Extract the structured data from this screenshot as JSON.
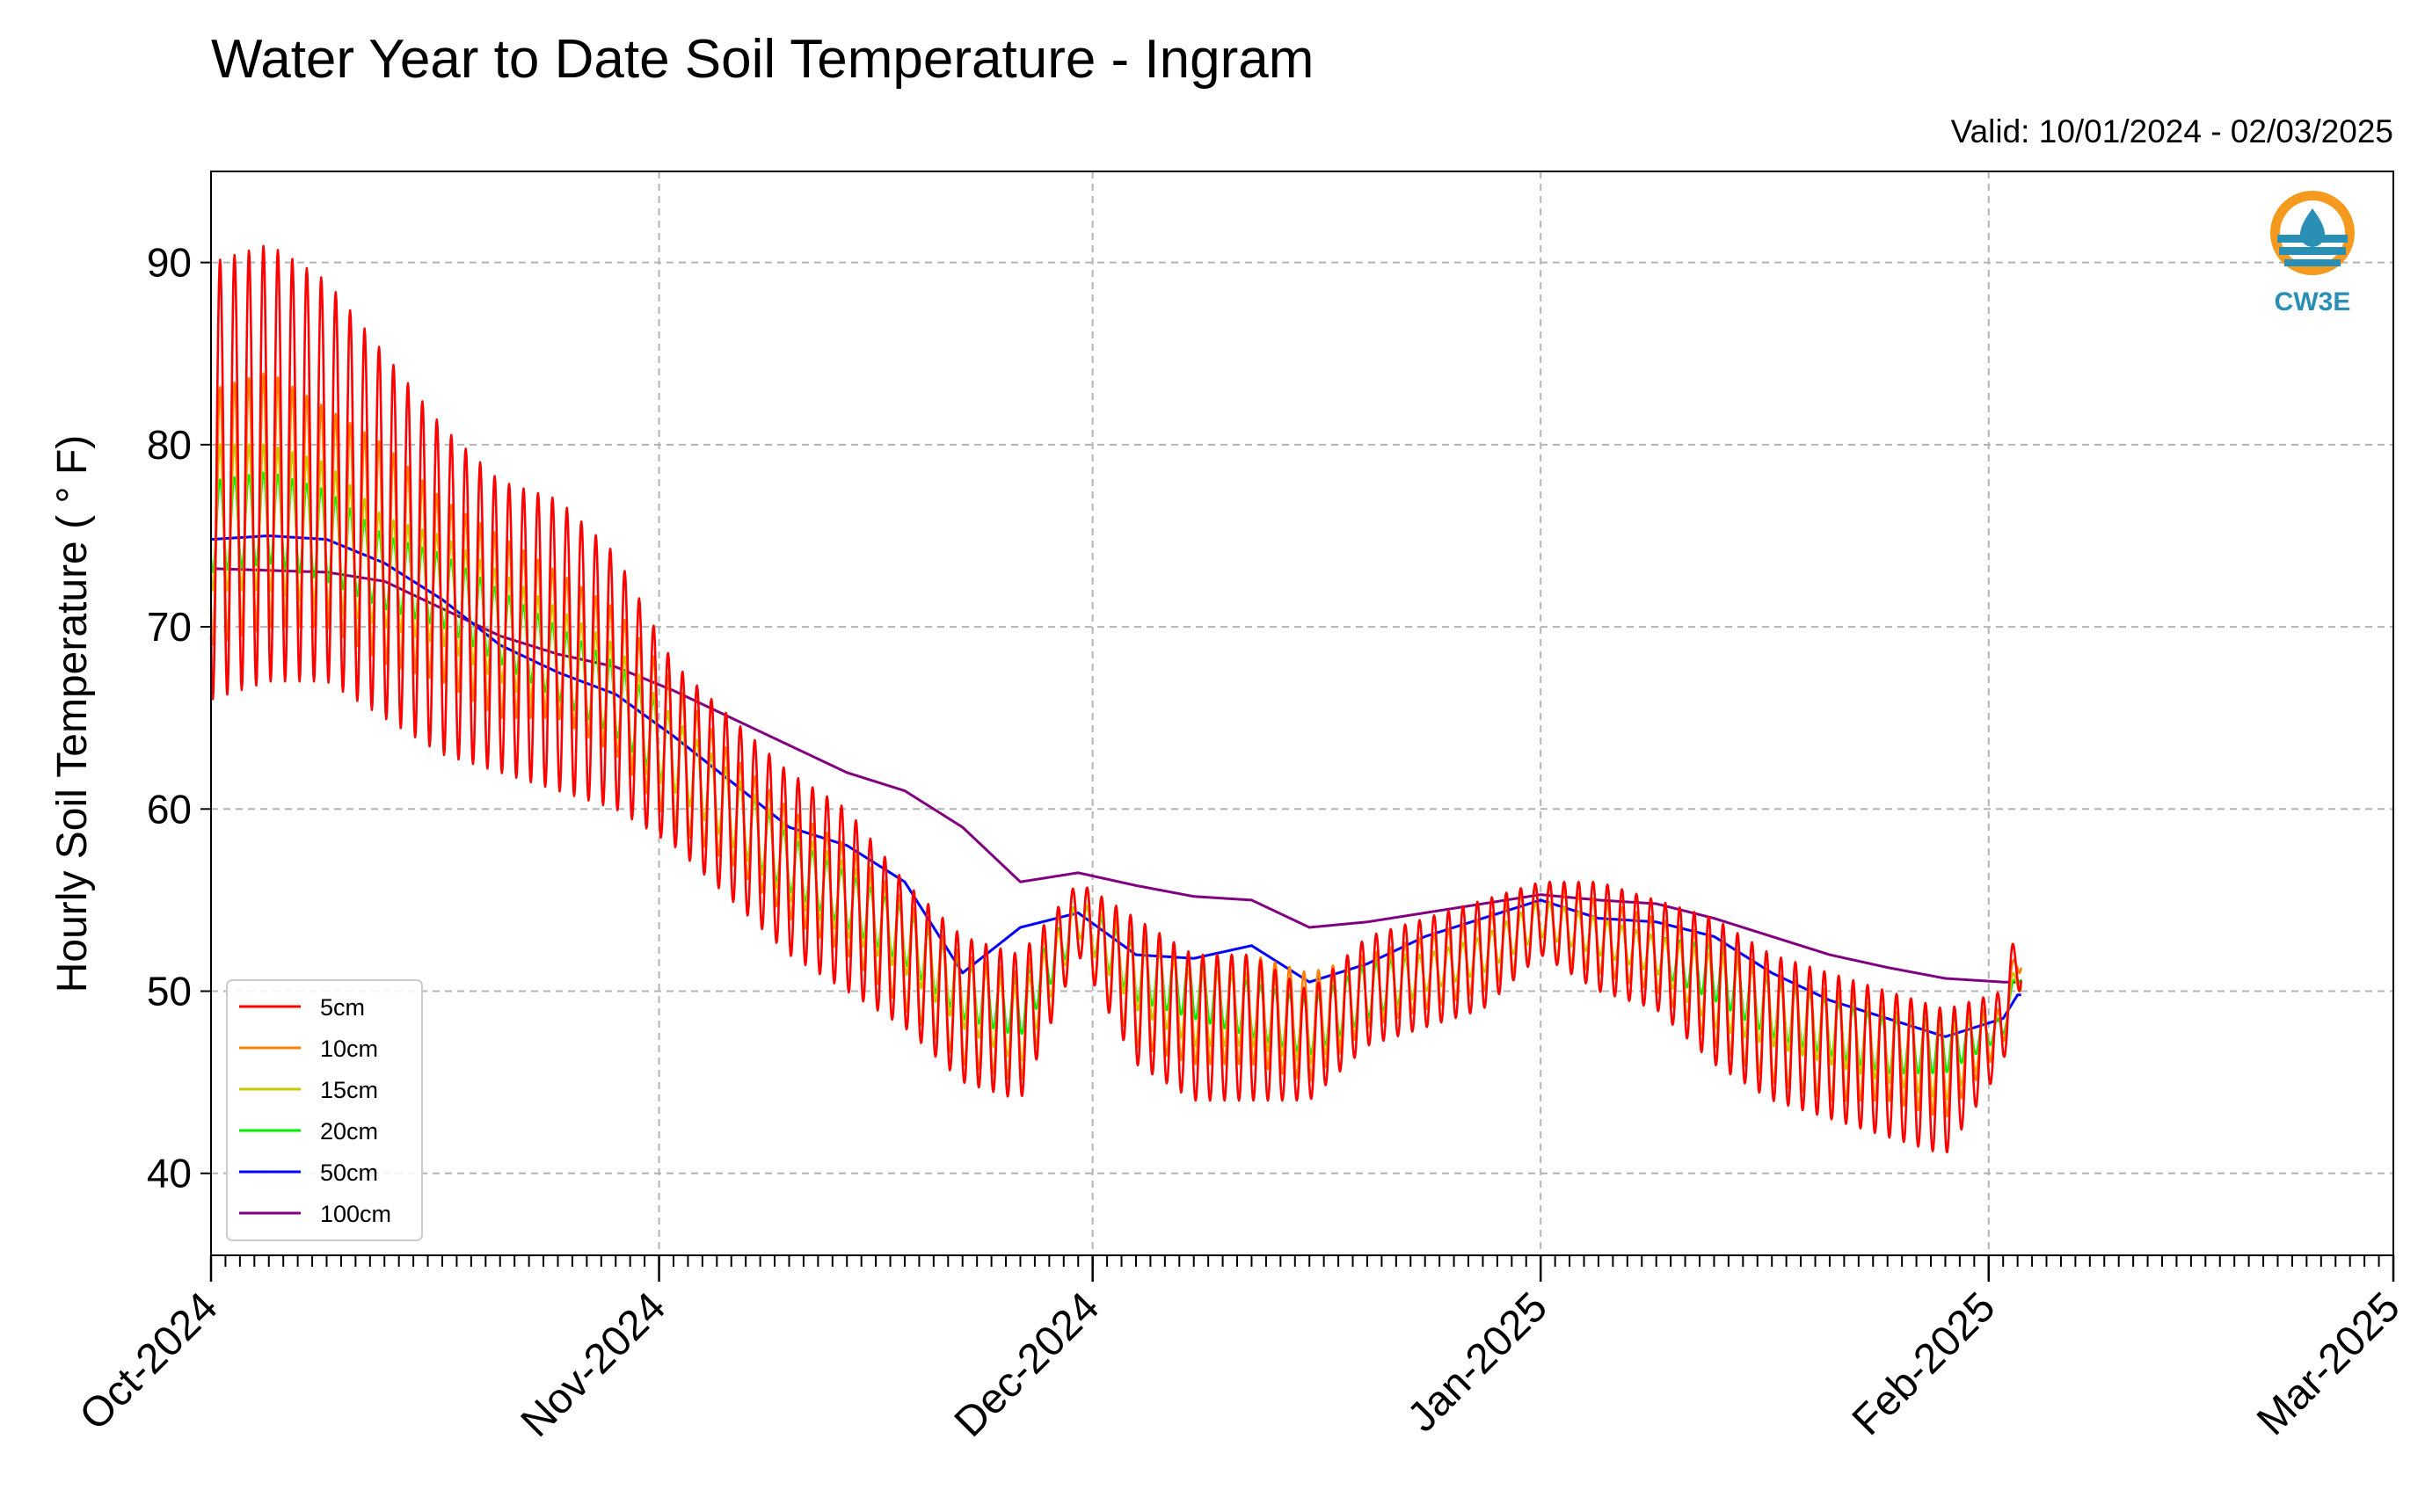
{
  "chart_data": {
    "type": "line",
    "title": "Water Year to Date Soil Temperature - Ingram",
    "subtitle": "Valid: 10/01/2024 - 02/03/2025",
    "ylabel": "Hourly Soil Temperature ( ° F)",
    "xlabel": "",
    "ylim": [
      35.5,
      95
    ],
    "xlim": [
      "2024-10-01",
      "2025-03-01"
    ],
    "yticks": [
      "40",
      "50",
      "60",
      "70",
      "80",
      "90"
    ],
    "xticks": [
      "Oct-2024",
      "Nov-2024",
      "Dec-2024",
      "Jan-2025",
      "Feb-2025",
      "Mar-2025"
    ],
    "grid": true,
    "legend_position": "lower-left",
    "x": [
      "2024-10-01",
      "2024-10-05",
      "2024-10-09",
      "2024-10-13",
      "2024-10-17",
      "2024-10-21",
      "2024-10-25",
      "2024-10-29",
      "2024-11-02",
      "2024-11-06",
      "2024-11-10",
      "2024-11-14",
      "2024-11-18",
      "2024-11-22",
      "2024-11-26",
      "2024-11-30",
      "2024-12-04",
      "2024-12-08",
      "2024-12-12",
      "2024-12-16",
      "2024-12-20",
      "2024-12-24",
      "2024-12-28",
      "2025-01-01",
      "2025-01-05",
      "2025-01-09",
      "2025-01-13",
      "2025-01-17",
      "2025-01-21",
      "2025-01-25",
      "2025-01-29",
      "2025-02-02",
      "2025-02-03"
    ],
    "series": [
      {
        "name": "5cm",
        "color": "#ff0000",
        "values": [
          78,
          79,
          78,
          75,
          72,
          70,
          69,
          67,
          63,
          60,
          57,
          55,
          52,
          49,
          48,
          54,
          50,
          48,
          48,
          47,
          50,
          51,
          52,
          54,
          53,
          52,
          50,
          48,
          47,
          46,
          45,
          48,
          52
        ],
        "amplitude": [
          12,
          12,
          11,
          10,
          9,
          8,
          8,
          7,
          5,
          5,
          5,
          5,
          4,
          4,
          4,
          2,
          4,
          4,
          4,
          3,
          3,
          3,
          3,
          2,
          3,
          3,
          4,
          4,
          4,
          4,
          4,
          2,
          2
        ]
      },
      {
        "name": "10cm",
        "color": "#ff8000",
        "values": [
          76,
          77,
          76,
          74,
          72,
          70,
          69,
          67,
          63,
          60,
          57,
          55,
          52,
          49,
          48,
          54,
          50,
          49,
          49,
          48,
          50,
          51,
          52,
          54,
          53,
          52,
          50,
          48,
          47,
          47,
          46,
          48,
          52
        ],
        "amplitude": [
          7,
          7,
          6,
          6,
          5,
          5,
          4,
          4,
          4,
          3,
          3,
          3,
          3,
          3,
          3,
          2,
          3,
          3,
          3,
          3,
          2,
          2,
          2,
          2,
          2,
          2,
          3,
          3,
          3,
          3,
          3,
          1,
          1
        ]
      },
      {
        "name": "15cm",
        "color": "#c8c800",
        "values": [
          76,
          76,
          75,
          73,
          72,
          70,
          68,
          66,
          63,
          60,
          57,
          55,
          53,
          50,
          48,
          54,
          51,
          49,
          49,
          48,
          50,
          51,
          52,
          54,
          53,
          52,
          50,
          49,
          48,
          47,
          46,
          48,
          51
        ],
        "amplitude": [
          4,
          4,
          4,
          3,
          3,
          3,
          3,
          3,
          2,
          2,
          2,
          2,
          2,
          2,
          2,
          1,
          2,
          2,
          2,
          2,
          2,
          1,
          1,
          1,
          1,
          1,
          2,
          2,
          2,
          2,
          2,
          1,
          1
        ]
      },
      {
        "name": "20cm",
        "color": "#00ee00",
        "values": [
          75.5,
          76,
          75,
          73,
          72,
          70,
          68,
          66,
          63,
          60,
          57,
          55,
          53,
          50,
          49,
          54,
          51,
          50,
          49,
          48,
          50,
          51,
          52,
          54,
          53,
          52,
          51,
          49,
          48,
          47,
          47,
          48,
          51
        ],
        "amplitude": [
          2.5,
          2.5,
          2.5,
          2,
          2,
          2,
          2,
          2,
          2,
          2,
          1.5,
          1.5,
          1.5,
          1.5,
          1.5,
          1,
          1.5,
          1.5,
          1.5,
          1.5,
          1.5,
          1,
          1,
          1,
          1,
          1,
          1.5,
          1.5,
          1.5,
          1.5,
          1.5,
          0.5,
          0.5
        ]
      },
      {
        "name": "50cm",
        "color": "#0000ff",
        "values": [
          74.8,
          75,
          74.8,
          73.5,
          71.5,
          69,
          67.5,
          66.3,
          64,
          61.5,
          59,
          58,
          56,
          51,
          53.5,
          54.3,
          52,
          51.8,
          52.5,
          50.5,
          51.5,
          53,
          54,
          55,
          54,
          53.8,
          53,
          51,
          49.5,
          48.5,
          47.5,
          48.5,
          49.8
        ],
        "amplitude": [
          0
        ]
      },
      {
        "name": "100cm",
        "color": "#800080",
        "values": [
          73.2,
          73.1,
          73,
          72.5,
          71,
          69.5,
          68.5,
          67.8,
          66.5,
          65,
          63.5,
          62,
          61,
          59,
          56,
          56.5,
          55.8,
          55.2,
          55,
          53.5,
          53.8,
          54.3,
          54.8,
          55.3,
          55,
          54.8,
          54,
          53,
          52,
          51.3,
          50.7,
          50.5,
          50.5
        ],
        "amplitude": [
          0
        ]
      }
    ]
  },
  "logo": {
    "text": "CW3E"
  }
}
